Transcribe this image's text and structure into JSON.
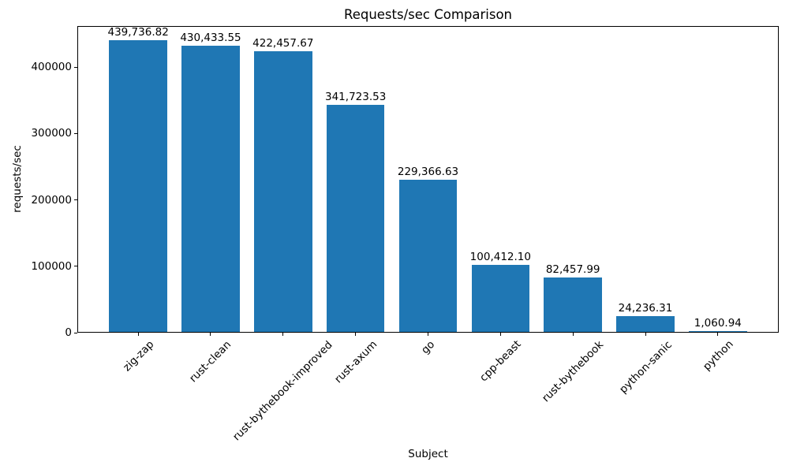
{
  "chart_data": {
    "type": "bar",
    "title": "Requests/sec Comparison",
    "xlabel": "Subject",
    "ylabel": "requests/sec",
    "categories": [
      "zig-zap",
      "rust-clean",
      "rust-bythebook-improved",
      "rust-axum",
      "go",
      "cpp-beast",
      "rust-bythebook",
      "python-sanic",
      "python"
    ],
    "values": [
      439736.82,
      430433.55,
      422457.67,
      341723.53,
      229366.63,
      100412.1,
      82457.99,
      24236.31,
      1060.94
    ],
    "value_labels": [
      "439,736.82",
      "430,433.55",
      "422,457.67",
      "341,723.53",
      "229,366.63",
      "100,412.10",
      "82,457.99",
      "24,236.31",
      "1,060.94"
    ],
    "yticks": [
      0,
      100000,
      200000,
      300000,
      400000
    ],
    "ytick_labels": [
      "0",
      "100000",
      "200000",
      "300000",
      "400000"
    ],
    "ylim": [
      0,
      461724
    ],
    "bar_color": "#1f77b4",
    "grid": false,
    "legend_position": null,
    "x_tick_rotation": 45
  }
}
